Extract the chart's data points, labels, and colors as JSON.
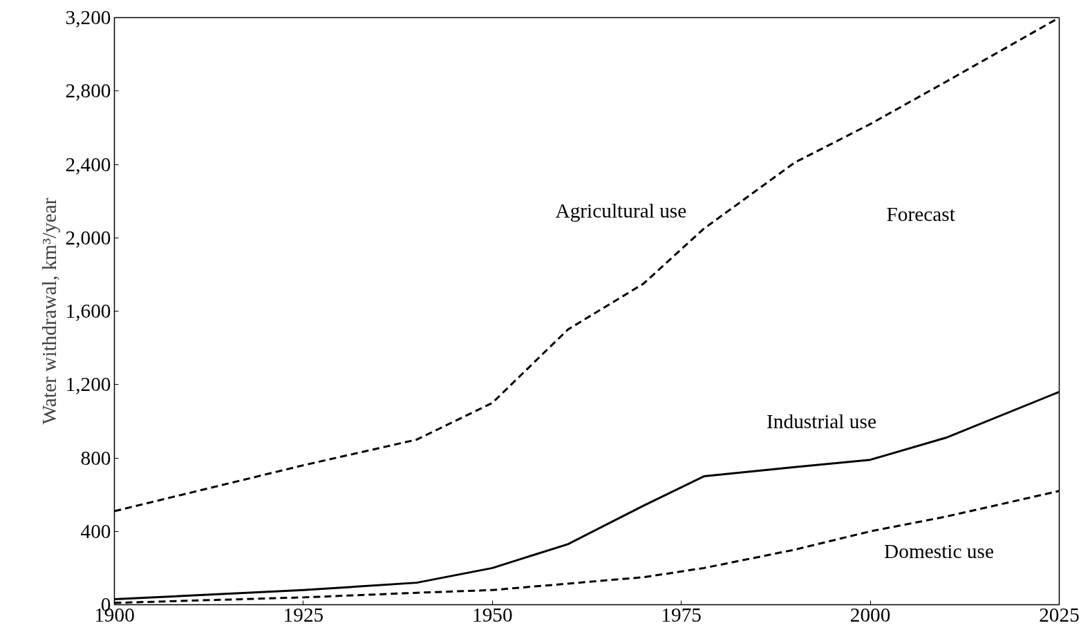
{
  "chart_data": {
    "type": "line",
    "ylabel": "Water withdrawal, km³/year",
    "x": [
      1900,
      1925,
      1940,
      1950,
      1960,
      1970,
      1978,
      1990,
      2000,
      2010,
      2025
    ],
    "series": [
      {
        "name": "Agricultural use",
        "color": "#000000",
        "line_style": "dashed",
        "values": [
          510,
          760,
          900,
          1100,
          1500,
          1750,
          2050,
          2410,
          2620,
          2850,
          3200
        ]
      },
      {
        "name": "Industrial use",
        "color": "#000000",
        "line_style": "solid",
        "values": [
          30,
          80,
          120,
          200,
          330,
          540,
          700,
          750,
          790,
          910,
          1160
        ]
      },
      {
        "name": "Domestic use",
        "color": "#000000",
        "line_style": "dashed",
        "values": [
          10,
          40,
          65,
          80,
          115,
          150,
          200,
          300,
          400,
          480,
          620
        ]
      }
    ],
    "annotations": [
      "Forecast"
    ],
    "xlim": [
      1900,
      2025
    ],
    "xticks": [
      1900,
      1925,
      1950,
      1975,
      2000,
      2025
    ],
    "ylim": [
      0,
      3200
    ],
    "yticks": [
      0,
      400,
      800,
      {
        "value": 1200,
        "label": "1,200"
      },
      {
        "value": 1600,
        "label": "1,600"
      },
      {
        "value": 2000,
        "label": "2,000"
      },
      {
        "value": 2400,
        "label": "2,400"
      },
      {
        "value": 2800,
        "label": "2,800"
      },
      {
        "value": 3200,
        "label": "3,200"
      }
    ],
    "grid": false,
    "legend": false,
    "marker": "none"
  }
}
